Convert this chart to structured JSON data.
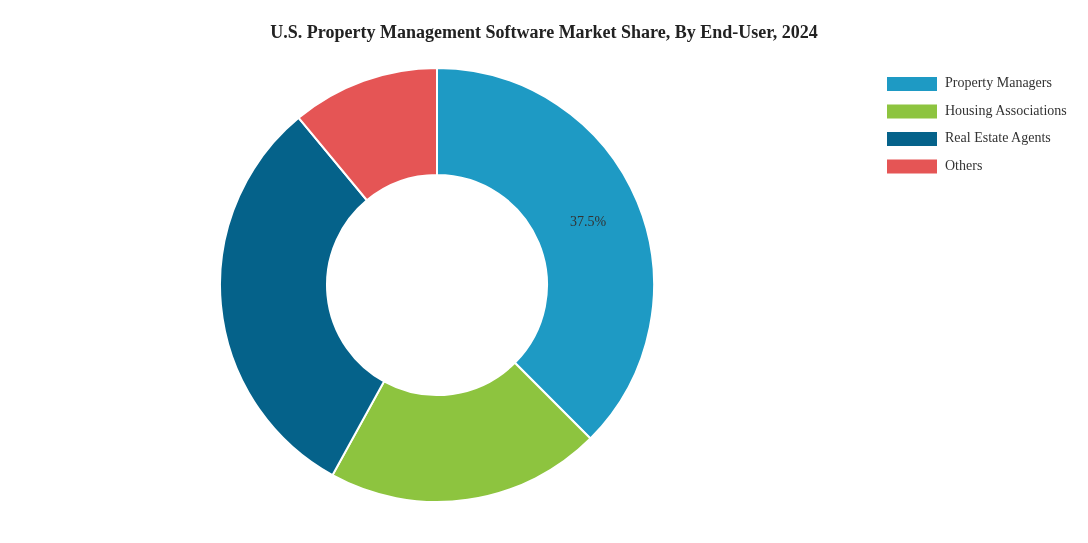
{
  "chart_data": {
    "type": "donut",
    "title": "U.S. Property Management Software Market Share, By End-User, 2024",
    "categories": [
      "Property Managers",
      "Housing Associations",
      "Real Estate Agents",
      "Others"
    ],
    "values": [
      37.5,
      20.5,
      31,
      11
    ],
    "colors": [
      "#1e9ac4",
      "#8dc43f",
      "#05628a",
      "#e55555"
    ],
    "value_labels": [
      "37.5%",
      null,
      null,
      null
    ],
    "legend": "top right"
  }
}
